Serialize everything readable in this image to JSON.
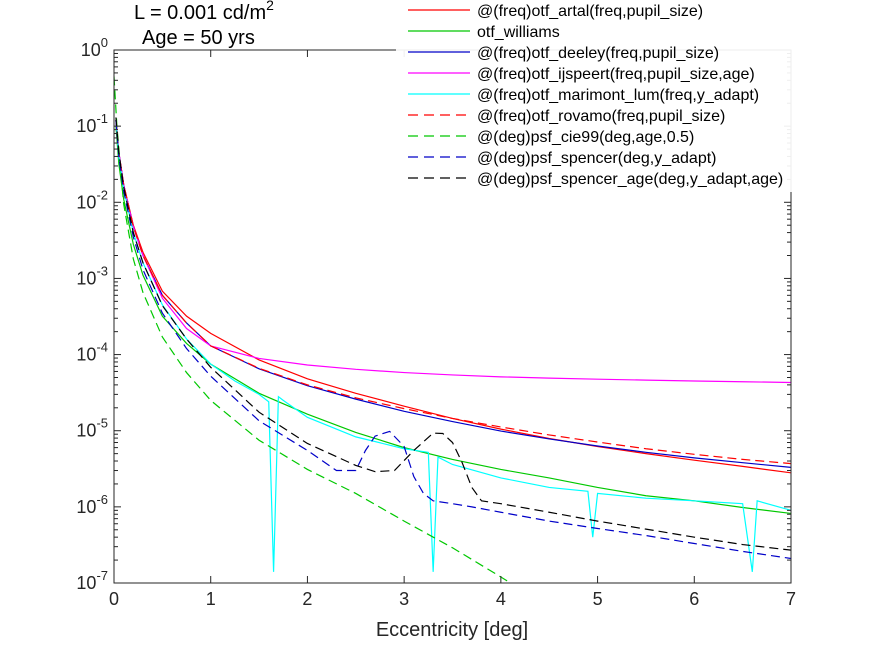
{
  "chart_data": {
    "type": "line",
    "title_line1": "L = 0.001 cd/m",
    "title_sup": "2",
    "title_line2": "Age = 50 yrs",
    "xlabel": "Eccentricity [deg]",
    "ylabel": "",
    "xlim": [
      0,
      7
    ],
    "ylim": [
      1e-07,
      1
    ],
    "yscale": "log",
    "grid": false,
    "legend_position": "top-right",
    "xticks": [
      0,
      1,
      2,
      3,
      4,
      5,
      6,
      7
    ],
    "xtick_labels": [
      "0",
      "1",
      "2",
      "3",
      "4",
      "5",
      "6",
      "7"
    ],
    "yticks": [
      1e-07,
      1e-06,
      1e-05,
      0.0001,
      0.001,
      0.01,
      0.1,
      1
    ],
    "ytick_labels": [
      {
        "base": "10",
        "exp": "-7"
      },
      {
        "base": "10",
        "exp": "-6"
      },
      {
        "base": "10",
        "exp": "-5"
      },
      {
        "base": "10",
        "exp": "-4"
      },
      {
        "base": "10",
        "exp": "-3"
      },
      {
        "base": "10",
        "exp": "-2"
      },
      {
        "base": "10",
        "exp": "-1"
      },
      {
        "base": "10",
        "exp": "0"
      }
    ],
    "series": [
      {
        "name": "@(freq)otf_artal(freq,pupil_size)",
        "color": "#ff0000",
        "dash": "solid",
        "x": [
          0.02,
          0.05,
          0.1,
          0.2,
          0.3,
          0.5,
          0.75,
          1,
          1.5,
          2,
          2.5,
          3,
          3.5,
          4,
          4.5,
          5,
          5.5,
          6,
          6.5,
          7
        ],
        "y": [
          0.12,
          0.045,
          0.017,
          0.005,
          0.0022,
          0.00068,
          0.00032,
          0.00019,
          8.5e-05,
          4.8e-05,
          3.1e-05,
          2.1e-05,
          1.45e-05,
          1.05e-05,
          7.9e-06,
          6.2e-06,
          5e-06,
          4.1e-06,
          3.4e-06,
          2.8e-06
        ]
      },
      {
        "name": "otf_williams",
        "color": "#00c800",
        "dash": "solid",
        "x": [
          0.02,
          0.05,
          0.1,
          0.2,
          0.3,
          0.5,
          0.75,
          1,
          1.5,
          2,
          2.5,
          3,
          3.5,
          4,
          4.5,
          5,
          5.5,
          6,
          6.5,
          7
        ],
        "y": [
          0.1,
          0.032,
          0.011,
          0.0028,
          0.0011,
          0.00032,
          0.00014,
          7.5e-05,
          3.1e-05,
          1.65e-05,
          9.5e-06,
          6e-06,
          4.2e-06,
          3.1e-06,
          2.4e-06,
          1.8e-06,
          1.4e-06,
          1.2e-06,
          9.8e-07,
          8.2e-07
        ]
      },
      {
        "name": "@(freq)otf_deeley(freq,pupil_size)",
        "color": "#0000c8",
        "dash": "solid",
        "x": [
          0.02,
          0.05,
          0.1,
          0.2,
          0.3,
          0.5,
          0.75,
          1,
          1.5,
          2,
          2.5,
          3,
          3.5,
          4,
          4.5,
          5,
          5.5,
          6,
          6.5,
          7
        ],
        "y": [
          0.12,
          0.045,
          0.017,
          0.0048,
          0.002,
          0.0006,
          0.00026,
          0.00013,
          6.5e-05,
          3.9e-05,
          2.6e-05,
          1.8e-05,
          1.32e-05,
          9.9e-06,
          7.8e-06,
          6.3e-06,
          5.2e-06,
          4.4e-06,
          3.8e-06,
          3.3e-06
        ]
      },
      {
        "name": "@(freq)otf_ijspeert(freq,pupil_size,age)",
        "color": "#ff00ff",
        "dash": "solid",
        "x": [
          0.02,
          0.05,
          0.1,
          0.2,
          0.3,
          0.5,
          0.75,
          1,
          1.5,
          2,
          2.5,
          3,
          3.5,
          4,
          4.5,
          5,
          5.5,
          6,
          6.5,
          7
        ],
        "y": [
          0.12,
          0.045,
          0.017,
          0.0048,
          0.002,
          0.00055,
          0.00022,
          0.00013,
          8.9e-05,
          7.3e-05,
          6.4e-05,
          5.8e-05,
          5.4e-05,
          5.1e-05,
          4.9e-05,
          4.75e-05,
          4.62e-05,
          4.5e-05,
          4.4e-05,
          4.3e-05
        ]
      },
      {
        "name": "@(freq)otf_marimont_lum(freq,y_adapt)",
        "color": "#00ffff",
        "dash": "solid",
        "x": [
          0.02,
          0.05,
          0.1,
          0.2,
          0.3,
          0.5,
          0.75,
          1,
          1.25,
          1.5,
          1.6,
          1.65,
          1.7,
          1.75,
          2,
          2.5,
          3,
          3.25,
          3.3,
          3.35,
          3.5,
          4,
          4.5,
          4.9,
          4.95,
          5.0,
          5.5,
          6,
          6.5,
          6.6,
          6.65,
          7
        ],
        "y": [
          0.12,
          0.04,
          0.015,
          0.004,
          0.0016,
          0.00045,
          0.00016,
          7.5e-05,
          4.5e-05,
          3e-05,
          2.4e-05,
          1.4e-07,
          2.8e-05,
          2.5e-05,
          1.5e-05,
          8.3e-06,
          5.8e-06,
          5.2e-06,
          1.4e-07,
          4.5e-06,
          3.6e-06,
          2.4e-06,
          1.8e-06,
          1.6e-06,
          4e-07,
          1.5e-06,
          1.3e-06,
          1.2e-06,
          1.1e-06,
          1.4e-07,
          1.2e-06,
          9e-07
        ]
      },
      {
        "name": "@(freq)otf_rovamo(freq,pupil_size)",
        "color": "#ff0000",
        "dash": "dashed",
        "x": [
          0.02,
          0.05,
          0.1,
          0.2,
          0.3,
          0.5,
          0.75,
          1,
          1.5,
          2,
          2.5,
          3,
          3.5,
          4,
          4.5,
          5,
          5.5,
          6,
          6.5,
          7
        ],
        "y": [
          0.12,
          0.045,
          0.017,
          0.0048,
          0.002,
          0.0006,
          0.00026,
          0.00013,
          6.6e-05,
          4e-05,
          2.7e-05,
          1.95e-05,
          1.45e-05,
          1.12e-05,
          8.8e-06,
          7.1e-06,
          5.8e-06,
          4.9e-06,
          4.2e-06,
          3.7e-06
        ]
      },
      {
        "name": "@(deg)psf_cie99(deg,age,0.5)",
        "color": "#00c800",
        "dash": "dashed",
        "x": [
          0,
          0.03,
          0.1,
          0.2,
          0.3,
          0.5,
          0.75,
          1,
          1.5,
          2,
          2.5,
          3,
          3.5,
          4,
          4.1
        ],
        "y": [
          0.45,
          0.1,
          0.0095,
          0.0018,
          0.00065,
          0.00017,
          5.8e-05,
          2.5e-05,
          7.5e-06,
          3.1e-06,
          1.5e-06,
          6.5e-07,
          2.9e-07,
          1.2e-07,
          1e-07
        ]
      },
      {
        "name": "@(deg)psf_spencer(deg,y_adapt)",
        "color": "#0000c8",
        "dash": "dashed",
        "x": [
          0.02,
          0.05,
          0.1,
          0.2,
          0.3,
          0.5,
          0.75,
          1,
          1.5,
          2,
          2.3,
          2.5,
          2.6,
          2.7,
          2.85,
          3,
          3.1,
          3.2,
          3.3,
          3.5,
          3.7,
          4,
          4.5,
          5,
          5.5,
          6,
          6.5,
          7
        ],
        "y": [
          0.12,
          0.04,
          0.014,
          0.0035,
          0.0013,
          0.00035,
          0.00012,
          5.2e-05,
          1.35e-05,
          5.5e-06,
          3e-06,
          3e-06,
          5.5e-06,
          8.5e-06,
          9.8e-06,
          6.2e-06,
          2.5e-06,
          1.5e-06,
          1.2e-06,
          1.1e-06,
          1e-06,
          8.5e-07,
          6.5e-07,
          5.2e-07,
          4.2e-07,
          3.3e-07,
          2.6e-07,
          2.1e-07
        ]
      },
      {
        "name": "@(deg)psf_spencer_age(deg,y_adapt,age)",
        "color": "#000000",
        "dash": "dashed",
        "x": [
          0.02,
          0.05,
          0.1,
          0.2,
          0.3,
          0.5,
          0.75,
          1,
          1.5,
          2,
          2.5,
          2.7,
          2.9,
          3.1,
          3.3,
          3.4,
          3.5,
          3.6,
          3.7,
          3.8,
          4,
          4.5,
          5,
          5.5,
          6,
          6.5,
          7
        ],
        "y": [
          0.13,
          0.045,
          0.016,
          0.004,
          0.0016,
          0.00044,
          0.00016,
          6.8e-05,
          1.75e-05,
          6.8e-06,
          3.5e-06,
          2.9e-06,
          3e-06,
          5.5e-06,
          9.3e-06,
          9.2e-06,
          7e-06,
          3.8e-06,
          1.8e-06,
          1.2e-06,
          1.1e-06,
          8.5e-07,
          6.5e-07,
          5.1e-07,
          4e-07,
          3.2e-07,
          2.7e-07
        ]
      }
    ]
  }
}
